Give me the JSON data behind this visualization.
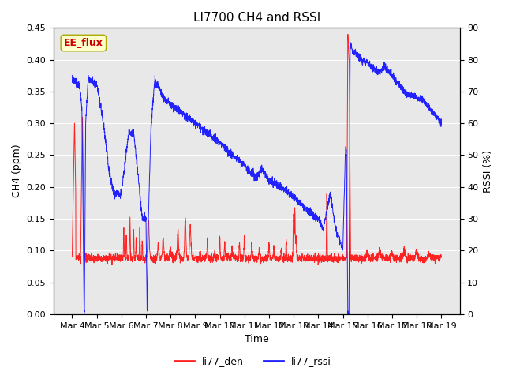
{
  "title": "LI7700 CH4 and RSSI",
  "xlabel": "Time",
  "ylabel_left": "CH4 (ppm)",
  "ylabel_right": "RSSI (%)",
  "ylim_left": [
    0.0,
    0.45
  ],
  "ylim_right": [
    0,
    90
  ],
  "yticks_left": [
    0.0,
    0.05,
    0.1,
    0.15,
    0.2,
    0.25,
    0.3,
    0.35,
    0.4,
    0.45
  ],
  "yticks_right": [
    0,
    10,
    20,
    30,
    40,
    50,
    60,
    70,
    80,
    90
  ],
  "color_ch4": "#ff2222",
  "color_rssi": "#2222ff",
  "legend_labels": [
    "li77_den",
    "li77_rssi"
  ],
  "watermark": "EE_flux",
  "background_color": "#e8e8e8",
  "fig_background": "#ffffff",
  "title_fontsize": 11,
  "axis_label_fontsize": 9,
  "tick_fontsize": 8
}
